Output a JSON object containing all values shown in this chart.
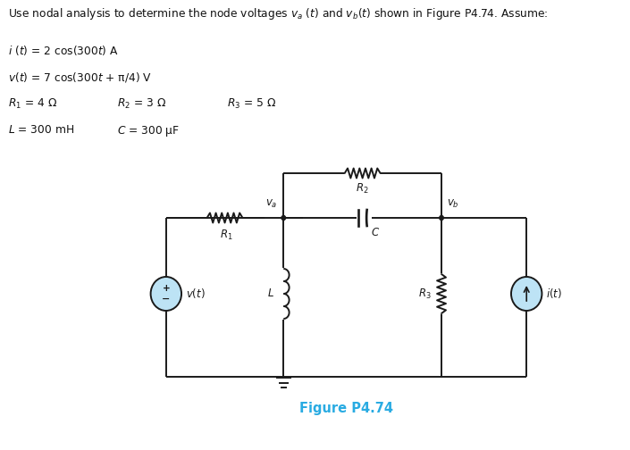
{
  "title_full": "Use nodal analysis to determine the node voltages $v_a$ $(t)$ and $v_b(t)$ shown in Figure P4.74. Assume:",
  "eq1": "$i$ $(t)$ = 2 cos(300$t$) A",
  "eq2": "$v(t)$ = 7 cos(300$t$ + π/4) V",
  "eq3a": "$R_1$ = 4 Ω",
  "eq3b": "$R_2$ = 3 Ω",
  "eq3c": "$R_3$ = 5 Ω",
  "eq4a": "$L$ = 300 mH",
  "eq4b": "$C$ = 300 μF",
  "fig_label": "Figure P4.74",
  "fig_label_color": "#29ABE2",
  "line_color": "#1a1a1a",
  "component_color": "#1a1a1a",
  "source_fill": "#BDE3F5",
  "bg_color": "#FFFFFF"
}
